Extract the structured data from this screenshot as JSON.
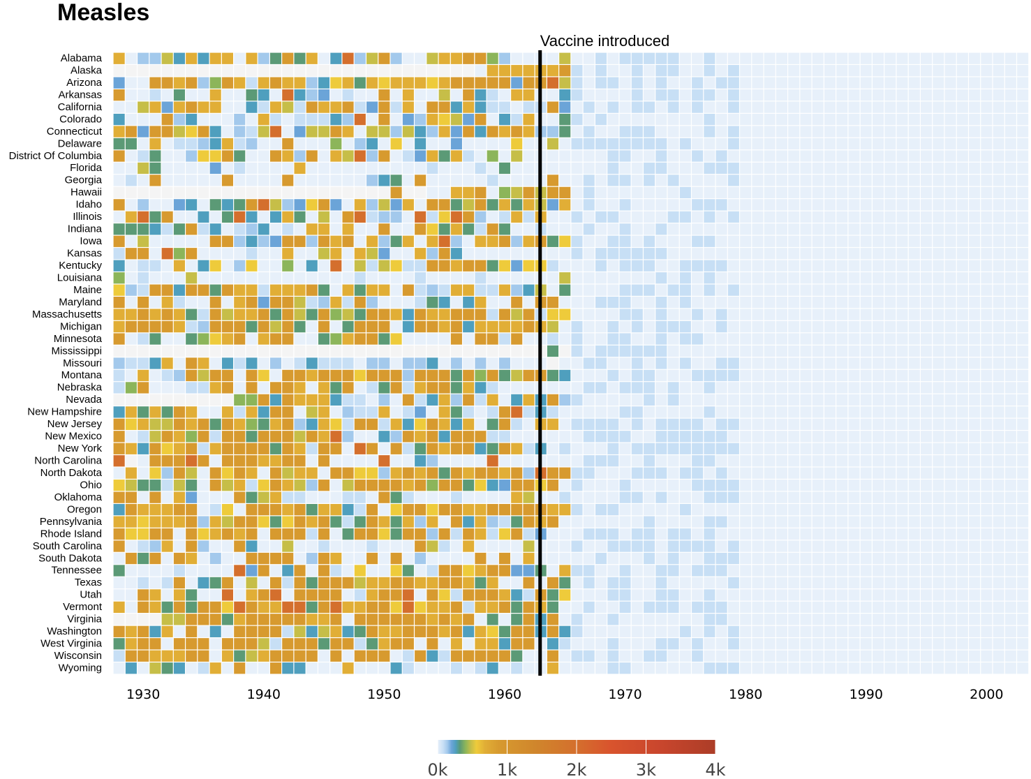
{
  "chart_data": {
    "type": "heatmap",
    "title": "Measles",
    "xlabel": "",
    "ylabel": "",
    "x_range": [
      1928,
      2003
    ],
    "x_ticks": [
      1930,
      1940,
      1950,
      1960,
      1970,
      1980,
      1990,
      2000
    ],
    "annotation": {
      "label": "Vaccine introduced",
      "x": 1963
    },
    "grid": false,
    "legend": {
      "position": "bottom-center",
      "type": "color-scale",
      "min": 0,
      "max": 4000,
      "tick_labels": [
        "0k",
        "1k",
        "2k",
        "3k",
        "4k"
      ],
      "tick_values": [
        0,
        1000,
        2000,
        3000,
        4000
      ],
      "colors": [
        "#e7f0fa",
        "#c7dff5",
        "#a3c9ec",
        "#6ba4d8",
        "#4f9fbe",
        "#5b9a76",
        "#8cb55a",
        "#c6be48",
        "#eecb3b",
        "#e1ae36",
        "#d79a2f",
        "#d0862c",
        "#d46f2d",
        "#d9542d",
        "#c9462d",
        "#ac3d27"
      ]
    },
    "rows": [
      "Alabama",
      "Alaska",
      "Arizona",
      "Arkansas",
      "California",
      "Colorado",
      "Connecticut",
      "Delaware",
      "District Of Columbia",
      "Florida",
      "Georgia",
      "Hawaii",
      "Idaho",
      "Illinois",
      "Indiana",
      "Iowa",
      "Kansas",
      "Kentucky",
      "Louisiana",
      "Maine",
      "Maryland",
      "Massachusetts",
      "Michigan",
      "Minnesota",
      "Mississippi",
      "Missouri",
      "Montana",
      "Nebraska",
      "Nevada",
      "New Hampshire",
      "New Jersey",
      "New Mexico",
      "New York",
      "North Carolina",
      "North Dakota",
      "Ohio",
      "Oklahoma",
      "Oregon",
      "Pennsylvania",
      "Rhode Island",
      "South Carolina",
      "South Dakota",
      "Tennessee",
      "Texas",
      "Utah",
      "Vermont",
      "Virginia",
      "Washington",
      "West Virginia",
      "Wisconsin",
      "Wyoming"
    ],
    "years": {
      "start": 1928,
      "end": 2003
    },
    "cell_value_units": "cases per 100,000 people",
    "value_rows_1928_to_1965": [
      "A044D5A5AF0A46B6F05C4DB400DAFBB7400009",
      "------------------------------0FAAAAAB",
      "300BBFB47BF1FBFF25EA6AEAAAEFBBBBB3BBC8",
      "B0010600A00650C5430100B0A00D0B510AA005",
      "00DA3FBAA0051AD1BAAB13B1A0BB5A511011B3",
      "5000B2500040A1011152C0B032AE93B051A006",
      "AB3BB8EB5041DC03D9BF08D4D54A3B5BFBF446",
      "660A01145A1400B00070450E050030000E00D0",
      "B016002EEB600BA2B0A9C4B013A6A1070D0000",
      "00D600003010000A0000000000100010600000",
      "010B00000B0000B0000002560B0000010000B0",
      "-----------------------B--00AAB07DBDBB",
      "B0400350656BCD43EB30A4D3A0BB6DB6A6FD3A",
      "0AC6B00506C505F60D0BC1440C1ECB401A1A00",
      "666516B150145010FA0A00B00BE6F61B600100",
      "B0D00000BB4543BB4BAB0A46A0AC20AAB2FB6E",
      "1BB0C7B0000100A008A0AD300A4B5000000000",
      "50110A05E04E007050C0D1DE11BBABB6E3EE10",
      "701000D000000000000010000100001000000D",
      "E41BB5BB6BAA1AAAB60A6AA0B141AA11A45D06",
      "B0B0A100B0AB3BBD14A1B200016505A00B0BB0",
      "AABABA61BDAAB6BD6B7D6BBA5BAABBB1BDB1EE",
      "ABBBBA14BBB6B9B60B06BBB05BBAB5FAFFBAD0",
      "B0160067EAB0ABB0067ABB6E0000B0BB1B0010",
      "------------------------------------6-",
      "4115A0BA0515040151110440445040404000-0",
      "10A014BDBB0BE0BBFBBBEBBB4BBB6B7B6DBB65",
      "17B00011AB0B0BBA0A6B016B1ABB6A51000000",
      "----------77B5BAAA511040B15F4B1F05F5B4",
      "5A6A6BA00A1F5BB0DA0411A0130A6101BC1510",
      "BEADDBAB6BA76FB45FE1BB1A5EBF5A06B10AF0",
      "B01DBA7B1BB6BBBDBAC40054BAB5BBB1100000",
      "BA5BEAB1FBBBB6BA1BB0CB0B16BABB56BA1501",
      "C-0BBBCB0BBBFABB0B0000C00540000C000000",
      "0A0E4BD0BEBA0BDAA0BBEE4ABAB6BABBAB4CBB",
      "ED661D60BDA1EBAD4B0DBBBBFB7BB6E53BBEB0",
      "BB0B0A3000B6DA11000110B6100010000AD001",
      "5BAAABB01E0BBBAB6AA51B0EBBEBBAFBBBBBAA",
      "AFEAAAB4FDBBE6EBAB616BA6A2F0B5A416BAB0",
      "BEEBB0BEABAB0BBB1B06BBE6BB4B1BA1EB1300",
      "B014A0B400B500D0010001000BD10A0000D000",
      "0B6B0BA0400BBBB04BA00B0B040000B0B0A000",
      "6000010000C3B05B0B10E00E601BBEABB3360F",
      "00101B056B0D0B1B6BBBDAABBFABBA6A00B0B6",
      "00BF0A600C0ABC0BBBB01ABBC0BE1BBBA51B6E",
      "A0BA6B6BBECBAACC6BCAABBECEFAB1AAB6BF60",
      "----DDBBB6ABBBBBAAB0BBBBBBABAB0606B5B0",
      "BAB5A0B050BBBB1D5DF56BAABBBFB5AE6BB5B5",
      "6ABB0BBB0BBBD1BBB6BB16ABB0B0A0FA5BB051",
      "1BBAAABB0A6DABBBB0B0BBB01B51BBBBB600B0",
      "050D6501A0B00B55000A0005100010150100A0"
    ],
    "value_key": {
      "-": null,
      "0": 2,
      "1": 14,
      "2": 24,
      "3": 38,
      "4": 28,
      "5": 55,
      "6": 72,
      "7": 92,
      "8": 112,
      "9": 140,
      "A": 330,
      "B": 450,
      "C": 1900,
      "D": 125,
      "E": 205,
      "F": 250
    },
    "values_after_1965": "low (mostly under 20), light blue"
  }
}
